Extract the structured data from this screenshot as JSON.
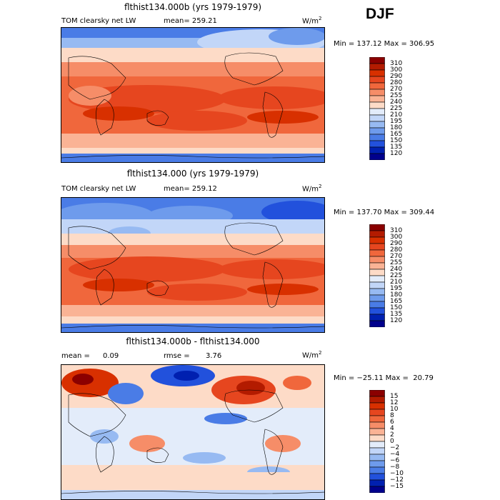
{
  "season": "DJF",
  "units_base": "W/m",
  "units_exp": "2",
  "panels": [
    {
      "title": "flthist134.000b (yrs 1979-1979)",
      "subtitle": "TOM clearsky net LW",
      "stat": "mean= 259.21",
      "minmax": "Min = 137.12 Max = 306.95",
      "colorbar": [
        "310",
        "300",
        "290",
        "280",
        "270",
        "255",
        "240",
        "225",
        "210",
        "195",
        "180",
        "165",
        "150",
        "135",
        "120"
      ],
      "colors": [
        "#8b0000",
        "#b31b00",
        "#d83000",
        "#e6461f",
        "#f0673c",
        "#f68d68",
        "#fab395",
        "#fddbc7",
        "#e3ecfa",
        "#c2d6f8",
        "#97baf2",
        "#6e9bec",
        "#4a7ce6",
        "#2251dc",
        "#0020b0",
        "#00008c"
      ]
    },
    {
      "title": "flthist134.000 (yrs 1979-1979)",
      "subtitle": "TOM clearsky net LW",
      "stat": "mean= 259.12",
      "minmax": "Min = 137.70 Max = 309.44",
      "colorbar": [
        "310",
        "300",
        "290",
        "280",
        "270",
        "255",
        "240",
        "225",
        "210",
        "195",
        "180",
        "165",
        "150",
        "135",
        "120"
      ],
      "colors": [
        "#8b0000",
        "#b31b00",
        "#d83000",
        "#e6461f",
        "#f0673c",
        "#f68d68",
        "#fab395",
        "#fddbc7",
        "#e3ecfa",
        "#c2d6f8",
        "#97baf2",
        "#6e9bec",
        "#4a7ce6",
        "#2251dc",
        "#0020b0",
        "#00008c"
      ]
    },
    {
      "title": "flthist134.000b - flthist134.000",
      "mean_label": "mean =",
      "mean_value": "0.09",
      "rmse_label": "rmse =",
      "rmse_value": "3.76",
      "minmax": "Min = −25.11 Max =  20.79",
      "colorbar": [
        "15",
        "12",
        "10",
        "8",
        "6",
        "4",
        "2",
        "0",
        "−2",
        "−4",
        "−6",
        "−8",
        "−10",
        "−12",
        "−15"
      ],
      "colors": [
        "#8b0000",
        "#b31b00",
        "#d83000",
        "#e6461f",
        "#f0673c",
        "#f68d68",
        "#fab395",
        "#fddbc7",
        "#e3ecfa",
        "#c2d6f8",
        "#97baf2",
        "#6e9bec",
        "#4a7ce6",
        "#2251dc",
        "#0020b0",
        "#00008c"
      ]
    }
  ],
  "chart_data": [
    {
      "type": "heatmap",
      "title": "flthist134.000b (yrs 1979-1979)",
      "variable": "TOM clearsky net LW",
      "units": "W/m2",
      "mean": 259.21,
      "min": 137.12,
      "max": 306.95,
      "levels": [
        120,
        135,
        150,
        165,
        180,
        195,
        210,
        225,
        240,
        255,
        270,
        280,
        290,
        300,
        310
      ]
    },
    {
      "type": "heatmap",
      "title": "flthist134.000 (yrs 1979-1979)",
      "variable": "TOM clearsky net LW",
      "units": "W/m2",
      "mean": 259.12,
      "min": 137.7,
      "max": 309.44,
      "levels": [
        120,
        135,
        150,
        165,
        180,
        195,
        210,
        225,
        240,
        255,
        270,
        280,
        290,
        300,
        310
      ]
    },
    {
      "type": "heatmap",
      "title": "flthist134.000b - flthist134.000",
      "units": "W/m2",
      "mean": 0.09,
      "rmse": 3.76,
      "min": -25.11,
      "max": 20.79,
      "levels": [
        -15,
        -12,
        -10,
        -8,
        -6,
        -4,
        -2,
        0,
        2,
        4,
        6,
        8,
        10,
        12,
        15
      ]
    }
  ]
}
